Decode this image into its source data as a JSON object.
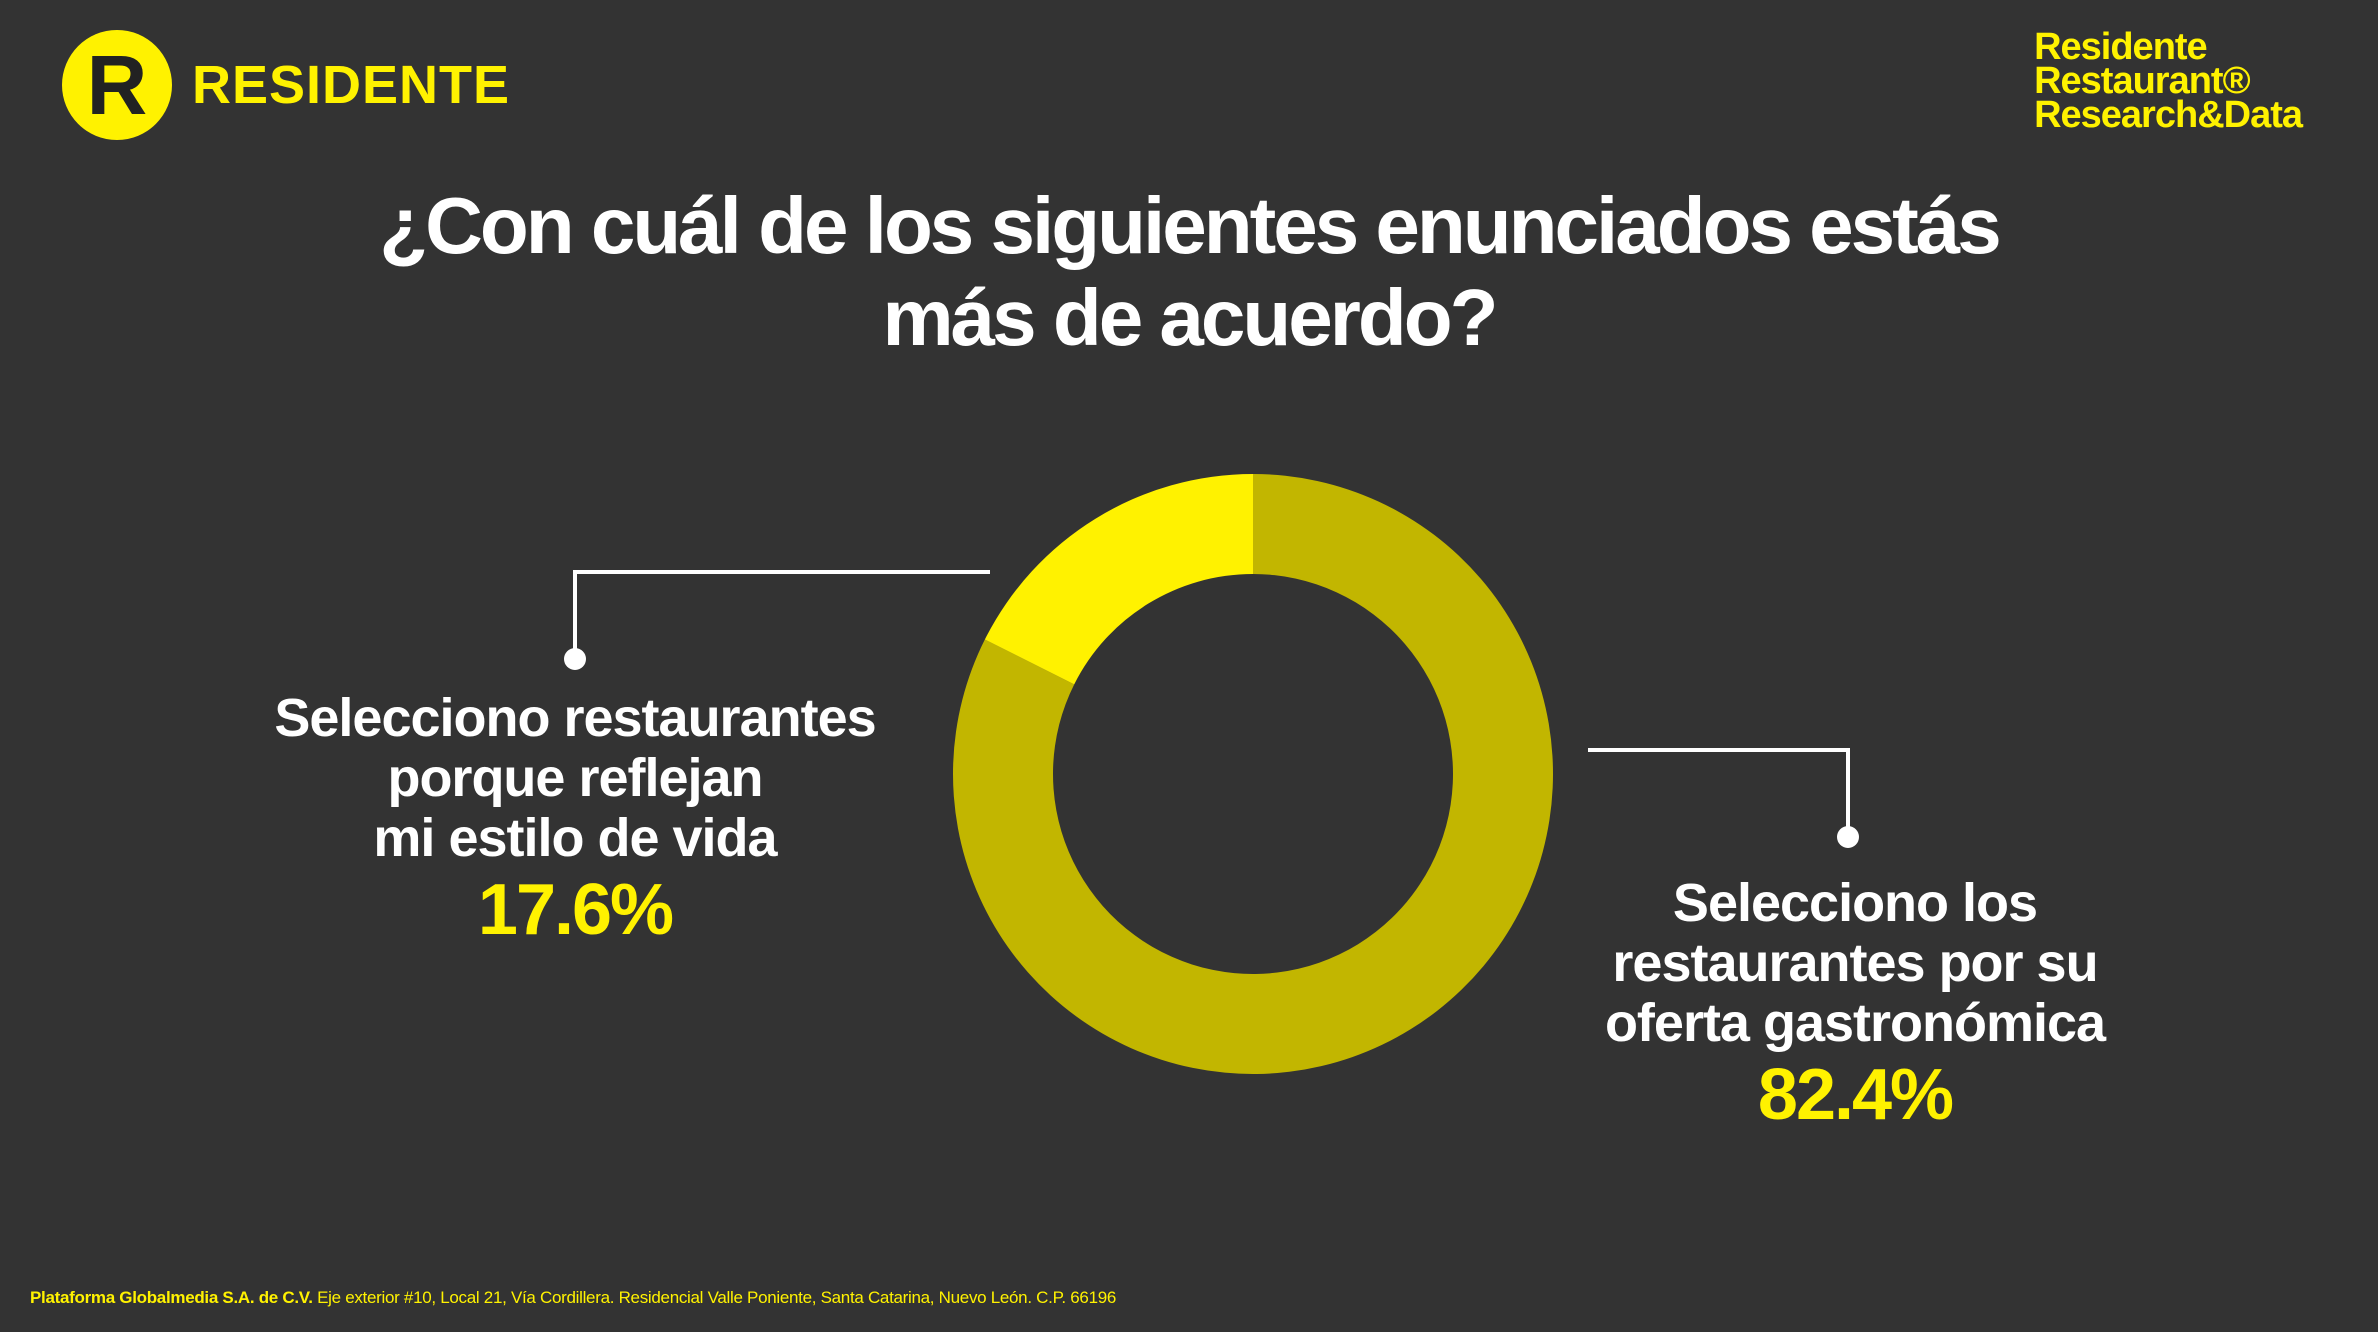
{
  "brand": {
    "left_logo_letter": "R",
    "left_logo_word": "RESIDENTE",
    "right_logo_lines": [
      "Residente",
      "Restaurant®",
      "Research&Data"
    ]
  },
  "colors": {
    "background": "#333333",
    "accent": "#FFF200",
    "slice_major": "#C2B600",
    "slice_minor": "#FFF200",
    "text": "#FFFFFF"
  },
  "title_lines": [
    "¿Con cuál de los siguientes enunciados estás",
    "más de acuerdo?"
  ],
  "chart_data": {
    "type": "pie",
    "variant": "donut",
    "title": "¿Con cuál de los siguientes enunciados estás más de acuerdo?",
    "slices": [
      {
        "label": "Selecciono restaurantes porque reflejan mi estilo de vida",
        "label_lines": [
          "Selecciono restaurantes",
          "porque reflejan",
          "mi estilo de vida"
        ],
        "value": 17.6,
        "display": "17.6%",
        "color": "#FFF200"
      },
      {
        "label": "Selecciono los restaurantes por su oferta gastronómica",
        "label_lines": [
          "Selecciono los",
          "restaurantes por su",
          "oferta gastronómica"
        ],
        "value": 82.4,
        "display": "82.4%",
        "color": "#C2B600"
      }
    ]
  },
  "footer": {
    "company": "Plataforma Globalmedia S.A. de C.V.",
    "address": " Eje exterior #10, Local 21, Vía Cordillera. Residencial Valle Poniente, Santa Catarina, Nuevo León. C.P. 66196"
  }
}
